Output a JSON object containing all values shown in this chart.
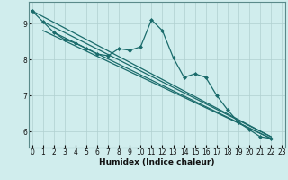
{
  "title": "",
  "xlabel": "Humidex (Indice chaleur)",
  "bg_color": "#d0eded",
  "grid_color": "#b0d0d0",
  "line_color": "#1a6b6b",
  "x_ticks": [
    0,
    1,
    2,
    3,
    4,
    5,
    6,
    7,
    8,
    9,
    10,
    11,
    12,
    13,
    14,
    15,
    16,
    17,
    18,
    19,
    20,
    21,
    22,
    23
  ],
  "y_ticks": [
    6,
    7,
    8,
    9
  ],
  "xlim": [
    -0.3,
    23.3
  ],
  "ylim": [
    5.55,
    9.6
  ],
  "data_line": [
    9.35,
    9.05,
    8.75,
    8.55,
    8.45,
    8.3,
    8.15,
    8.1,
    8.3,
    8.25,
    8.35,
    9.1,
    8.8,
    8.05,
    7.5,
    7.6,
    7.5,
    7.0,
    6.6,
    6.25,
    6.05,
    5.85,
    5.8
  ],
  "data_x_start": 0,
  "trend_lines": [
    {
      "x": [
        0,
        22
      ],
      "y": [
        9.35,
        5.85
      ]
    },
    {
      "x": [
        1,
        22
      ],
      "y": [
        9.05,
        5.85
      ]
    },
    {
      "x": [
        1,
        22
      ],
      "y": [
        8.8,
        5.8
      ]
    },
    {
      "x": [
        2,
        22
      ],
      "y": [
        8.75,
        5.8
      ]
    }
  ],
  "marker": "D",
  "markersize": 2.0,
  "linewidth": 0.9,
  "tick_fontsize": 5.5,
  "xlabel_fontsize": 6.5
}
